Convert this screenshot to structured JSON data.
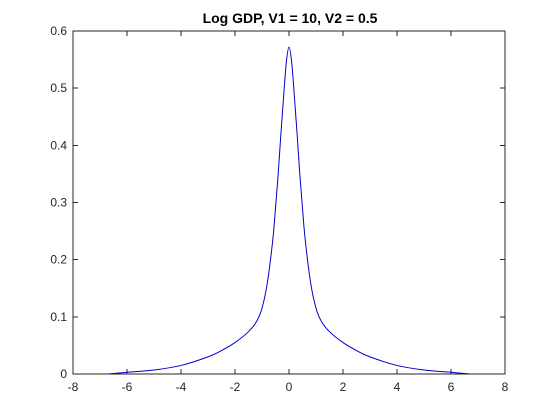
{
  "chart_data": {
    "type": "line",
    "title": "Log GDP, V1 = 10, V2 = 0.5",
    "xlabel": "",
    "ylabel": "",
    "xlim": [
      -8,
      8
    ],
    "ylim": [
      0,
      0.6
    ],
    "x_ticks": [
      -8,
      -6,
      -4,
      -2,
      0,
      2,
      4,
      6,
      8
    ],
    "x_tick_labels": [
      "-8",
      "-6",
      "-4",
      "-2",
      "0",
      "2",
      "4",
      "6",
      "8"
    ],
    "y_ticks": [
      0,
      0.1,
      0.2,
      0.3,
      0.4,
      0.5,
      0.6
    ],
    "y_tick_labels": [
      "0",
      "0.1",
      "0.2",
      "0.3",
      "0.4",
      "0.5",
      "0.6"
    ],
    "grid": false,
    "legend": "none",
    "box": true,
    "series": [
      {
        "color": "#0000cc",
        "x": [
          -6.7,
          -6,
          -5,
          -4,
          -3,
          -2.5,
          -2,
          -1.5,
          -1.2,
          -1,
          -0.8,
          -0.6,
          -0.5,
          -0.4,
          -0.3,
          -0.2,
          -0.1,
          0,
          0.1,
          0.2,
          0.3,
          0.4,
          0.5,
          0.6,
          0.8,
          1,
          1.2,
          1.5,
          2,
          2.5,
          3,
          4,
          5,
          6,
          6.7
        ],
        "y": [
          0,
          0.003,
          0.007,
          0.015,
          0.03,
          0.041,
          0.055,
          0.074,
          0.092,
          0.115,
          0.16,
          0.235,
          0.29,
          0.35,
          0.42,
          0.485,
          0.545,
          0.572,
          0.545,
          0.485,
          0.42,
          0.35,
          0.29,
          0.235,
          0.16,
          0.115,
          0.092,
          0.074,
          0.055,
          0.041,
          0.03,
          0.015,
          0.007,
          0.003,
          0
        ]
      }
    ]
  }
}
